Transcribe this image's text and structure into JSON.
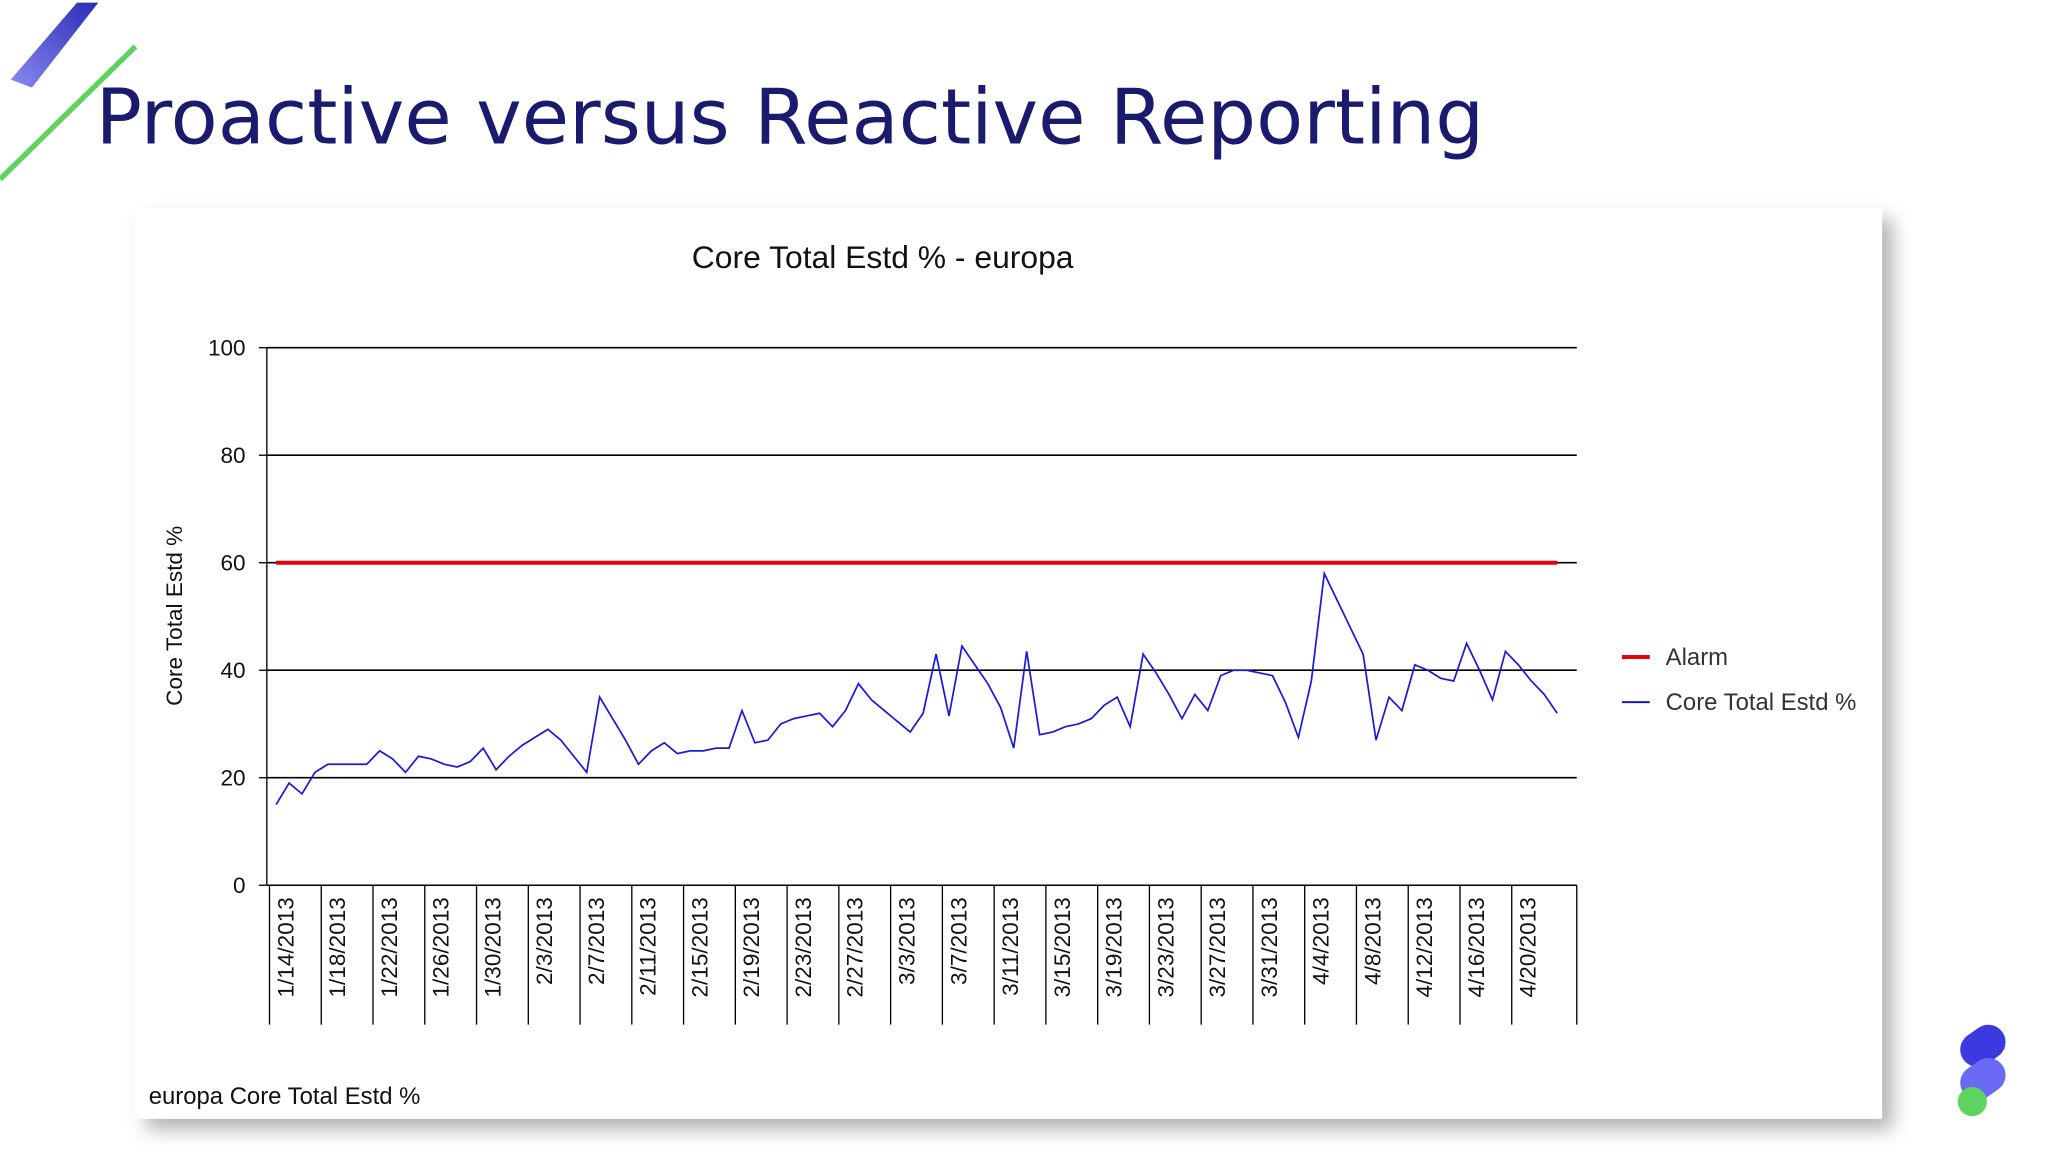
{
  "slide_title": "Proactive versus Reactive Reporting",
  "chart_data": {
    "type": "line",
    "title": "Core Total Estd % - europa",
    "y_label": "Core Total Estd %",
    "footer": "europa Core Total Estd %",
    "ylim": [
      0,
      100
    ],
    "yticks": [
      0,
      20,
      40,
      60,
      80,
      100
    ],
    "grid": true,
    "legend": "right",
    "categories": [
      "1/14/2013",
      null,
      null,
      null,
      "1/18/2013",
      null,
      null,
      null,
      "1/22/2013",
      null,
      null,
      null,
      "1/26/2013",
      null,
      null,
      null,
      "1/30/2013",
      null,
      null,
      null,
      "2/3/2013",
      null,
      null,
      null,
      "2/7/2013",
      null,
      null,
      null,
      "2/11/2013",
      null,
      null,
      null,
      "2/15/2013",
      null,
      null,
      null,
      "2/19/2013",
      null,
      null,
      null,
      "2/23/2013",
      null,
      null,
      null,
      "2/27/2013",
      null,
      null,
      null,
      "3/3/2013",
      null,
      null,
      null,
      "3/7/2013",
      null,
      null,
      null,
      "3/11/2013",
      null,
      null,
      null,
      "3/15/2013",
      null,
      null,
      null,
      "3/19/2013",
      null,
      null,
      null,
      "3/23/2013",
      null,
      null,
      null,
      "3/27/2013",
      null,
      null,
      null,
      "3/31/2013",
      null,
      null,
      null,
      "4/4/2013",
      null,
      null,
      null,
      "4/8/2013",
      null,
      null,
      null,
      "4/12/2013",
      null,
      null,
      null,
      "4/16/2013",
      null,
      null,
      null,
      "4/20/2013",
      null,
      null,
      null
    ],
    "series": [
      {
        "name": "Alarm",
        "color": "#e8000b",
        "values": [
          60,
          60,
          60,
          60,
          60,
          60,
          60,
          60,
          60,
          60,
          60,
          60,
          60,
          60,
          60,
          60,
          60,
          60,
          60,
          60,
          60,
          60,
          60,
          60,
          60,
          60,
          60,
          60,
          60,
          60,
          60,
          60,
          60,
          60,
          60,
          60,
          60,
          60,
          60,
          60,
          60,
          60,
          60,
          60,
          60,
          60,
          60,
          60,
          60,
          60,
          60,
          60,
          60,
          60,
          60,
          60,
          60,
          60,
          60,
          60,
          60,
          60,
          60,
          60,
          60,
          60,
          60,
          60,
          60,
          60,
          60,
          60,
          60,
          60,
          60,
          60,
          60,
          60,
          60,
          60,
          60,
          60,
          60,
          60,
          60,
          60,
          60,
          60,
          60,
          60,
          60,
          60,
          60,
          60,
          60,
          60,
          60,
          60,
          60,
          60
        ]
      },
      {
        "name": "Core Total Estd %",
        "color": "#1a1adb",
        "values": [
          15,
          19,
          17,
          21,
          22.5,
          22.5,
          22.5,
          22.5,
          25,
          23.5,
          21,
          24,
          23.5,
          22.5,
          22,
          23,
          25.5,
          21.5,
          24,
          26,
          27.5,
          29,
          27,
          24,
          21,
          35,
          31,
          27,
          22.5,
          25,
          26.5,
          24.5,
          25,
          25,
          25.5,
          25.5,
          32.5,
          26.5,
          27,
          30,
          31,
          31.5,
          32,
          29.5,
          32.5,
          37.5,
          34.5,
          32.5,
          30.5,
          28.5,
          32,
          43,
          31.5,
          44.5,
          41,
          37.5,
          33,
          25.5,
          43.5,
          28,
          28.5,
          29.5,
          30,
          31,
          33.5,
          35,
          29.5,
          43,
          39.5,
          35.5,
          31,
          35.5,
          32.5,
          39,
          40,
          40,
          39.5,
          39,
          34,
          27.5,
          38,
          58,
          53,
          48,
          43,
          27,
          35,
          32.5,
          41,
          40,
          38.5,
          38,
          45,
          40,
          34.5,
          43.5,
          41,
          38,
          35.5,
          32
        ]
      }
    ]
  }
}
